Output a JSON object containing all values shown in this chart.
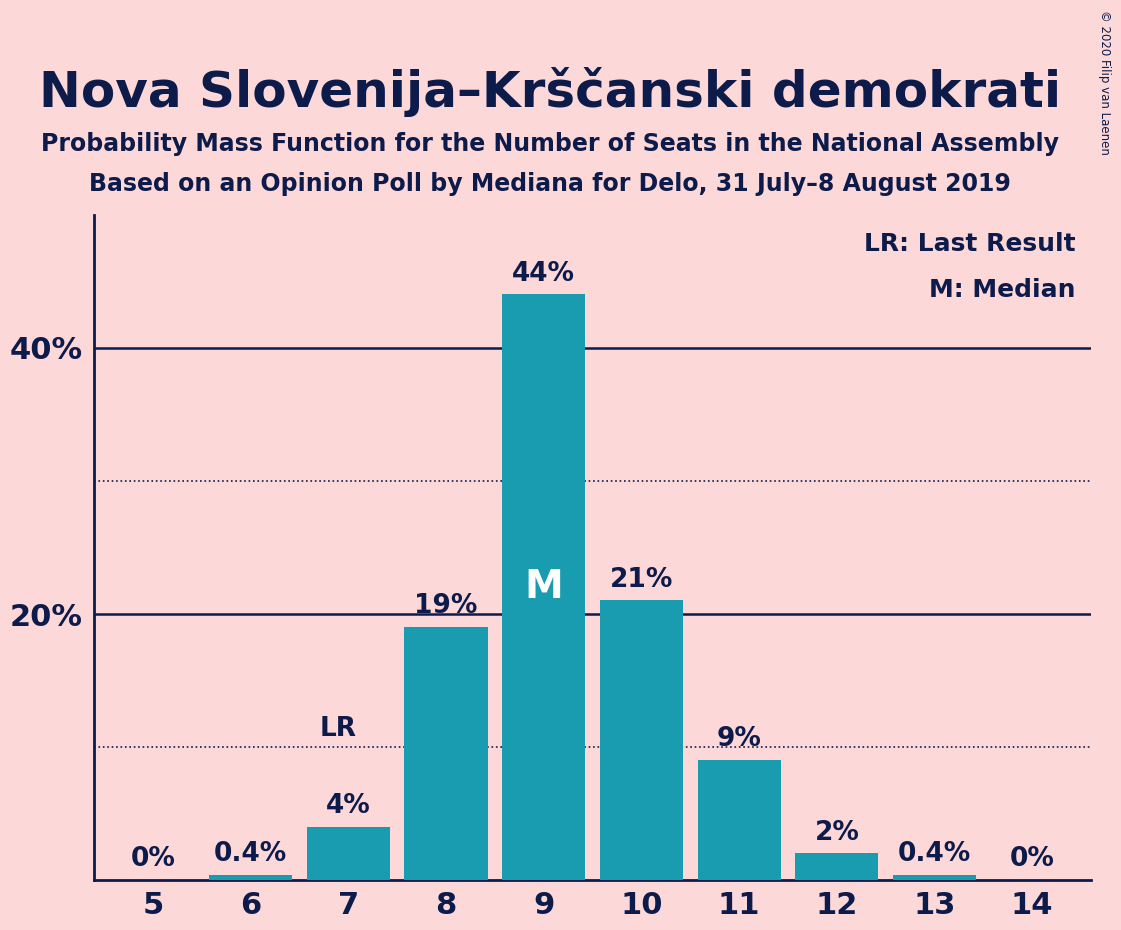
{
  "title": "Nova Slovenija–Krščanski demokrati",
  "subtitle1": "Probability Mass Function for the Number of Seats in the National Assembly",
  "subtitle2": "Based on an Opinion Poll by Mediana for Delo, 31 July–8 August 2019",
  "copyright": "© 2020 Filip van Laenen",
  "seats": [
    5,
    6,
    7,
    8,
    9,
    10,
    11,
    12,
    13,
    14
  ],
  "probabilities": [
    0.0,
    0.4,
    4.0,
    19.0,
    44.0,
    21.0,
    9.0,
    2.0,
    0.4,
    0.0
  ],
  "bar_color": "#1a9cb0",
  "background_color": "#fcd8d8",
  "text_color": "#0d1b4b",
  "white": "#ffffff",
  "median_seat": 9,
  "last_result_seat": 7,
  "yticks": [
    20,
    40
  ],
  "dotted_lines": [
    10,
    30
  ],
  "legend_lr": "LR: Last Result",
  "legend_m": "M: Median",
  "ylim": [
    0,
    50
  ],
  "title_fontsize": 36,
  "subtitle_fontsize": 17,
  "tick_fontsize": 22,
  "bar_label_fontsize": 19,
  "legend_fontsize": 18,
  "lr_label_fontsize": 19,
  "m_fontsize": 28
}
